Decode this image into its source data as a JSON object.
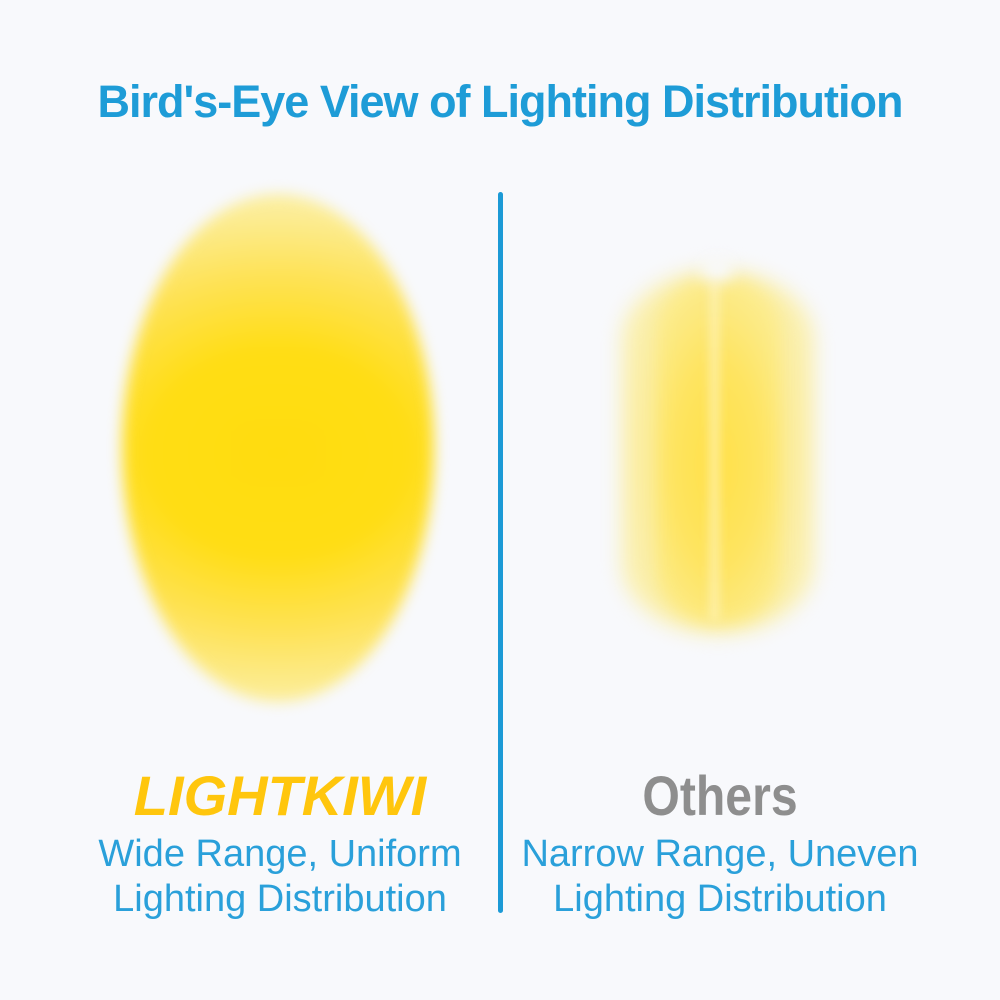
{
  "page": {
    "background_color": "#F8F9FC",
    "accent_blue": "#1E9CD7",
    "divider_color": "#1C9AD6"
  },
  "title": {
    "text": "Bird's-Eye View of Lighting Distribution",
    "color": "#1E9CD7"
  },
  "left_panel": {
    "brand": "LIGHTKIWI",
    "brand_color": "#FFC60D",
    "caption_line1": "Wide Range, Uniform",
    "caption_line2": "Lighting Distribution",
    "caption_color": "#2AA0DA",
    "glow": {
      "description": "wide uniform elliptical light pool",
      "core_color": "#FFDD14",
      "edge_color": "#FBF0AC"
    }
  },
  "right_panel": {
    "brand": "Others",
    "brand_color": "#8E8E8E",
    "caption_line1": "Narrow Range, Uneven",
    "caption_line2": "Lighting Distribution",
    "caption_color": "#2AA0DA",
    "glow": {
      "description": "narrow uneven barrel-shaped light pool with pale streaks",
      "core_color": "#FEE35C",
      "edge_color": "#FBF1BA"
    }
  }
}
